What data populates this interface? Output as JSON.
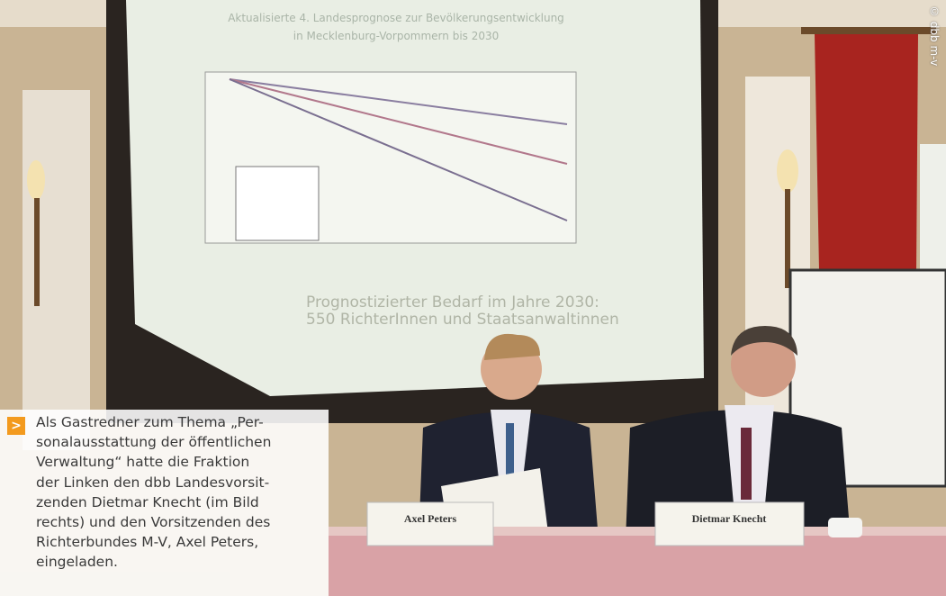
{
  "credit": "© dbb m-v",
  "slide": {
    "title_lines": [
      "Aktualisierte 4. Landesprognose zur Bevölkerungsentwicklung",
      "in Mecklenburg-Vorpommern bis 2030"
    ],
    "bullet_lines": [
      "Prognostizierter Bedarf im Jahre 2030:",
      "550 RichterInnen und Staatsanwaltinnen"
    ]
  },
  "name_plates": [
    "Axel Peters",
    "Dietmar Knecht"
  ],
  "caption": {
    "lines": [
      "Als Gastredner zum Thema „Per-",
      "sonalausstattung der öffentlichen",
      "Verwaltung“ hatte die Fraktion",
      "der Linken den dbb Landesvorsit-",
      "zenden Dietmar Knecht (im Bild",
      "rechts) und den Vorsitzenden des",
      "Richterbundes M-V, Axel Peters,",
      "eingeladen."
    ]
  }
}
